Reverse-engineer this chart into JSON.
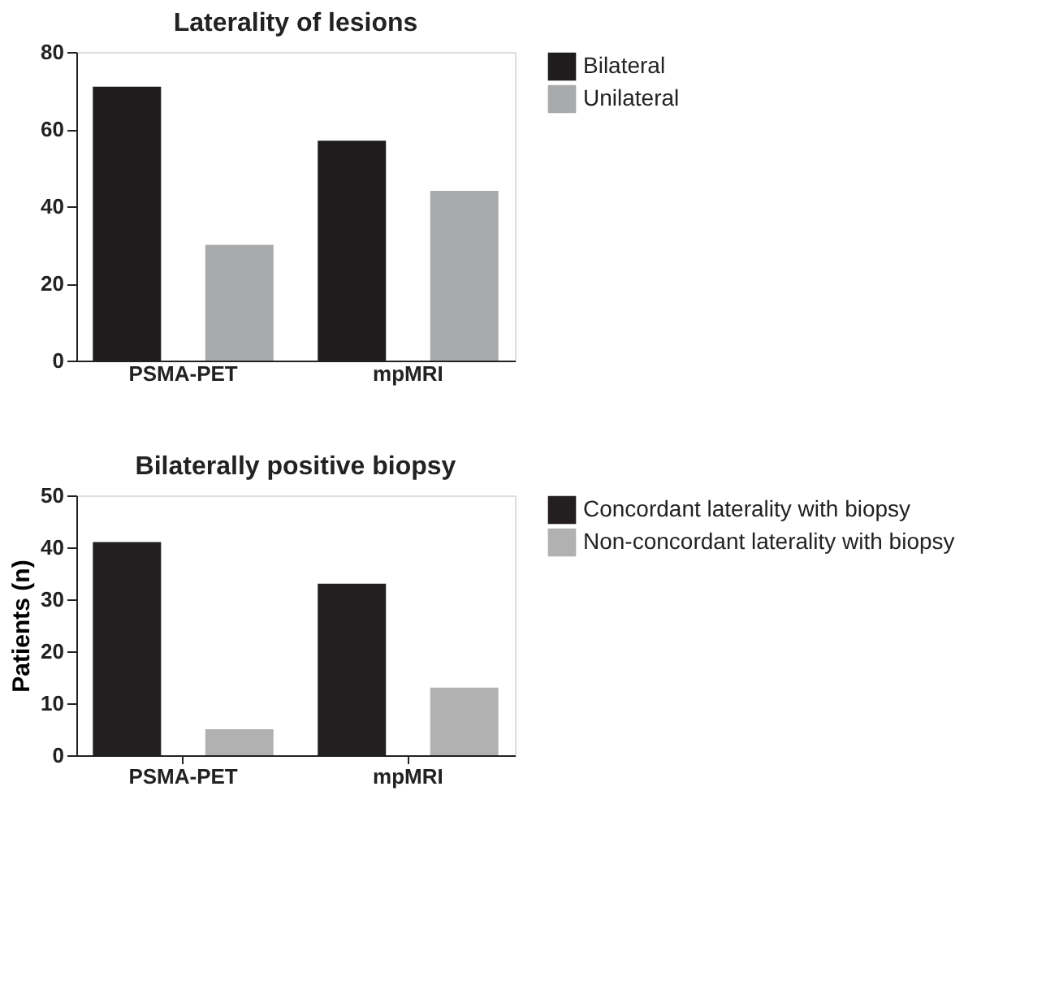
{
  "chart_data": [
    {
      "type": "bar",
      "title": "Laterality of lesions",
      "categories": [
        "PSMA-PET",
        "mpMRI"
      ],
      "series": [
        {
          "name": "Bilateral",
          "color": "#1e1c1d",
          "values": [
            71,
            57
          ]
        },
        {
          "name": "Unilateral",
          "color": "#a9aaac",
          "values": [
            30,
            44
          ]
        }
      ],
      "ylim": [
        0,
        80
      ],
      "yticks": [
        0,
        20,
        40,
        60,
        80
      ],
      "grid": false,
      "legend": "top right"
    },
    {
      "type": "bar",
      "title": "Bilaterally positive biopsy",
      "ylabel": "Patients (n)",
      "categories": [
        "PSMA-PET",
        "mpMRI"
      ],
      "series": [
        {
          "name": "Concordant laterality with biopsy",
          "color": "#231f20",
          "values": [
            41,
            33
          ]
        },
        {
          "name": "Non-concordant laterality with biopsy",
          "color": "#b1b1b1",
          "values": [
            5,
            13
          ]
        }
      ],
      "ylim": [
        0,
        50
      ],
      "yticks": [
        0,
        10,
        20,
        30,
        40,
        50
      ],
      "grid": false,
      "legend": "top right"
    }
  ]
}
